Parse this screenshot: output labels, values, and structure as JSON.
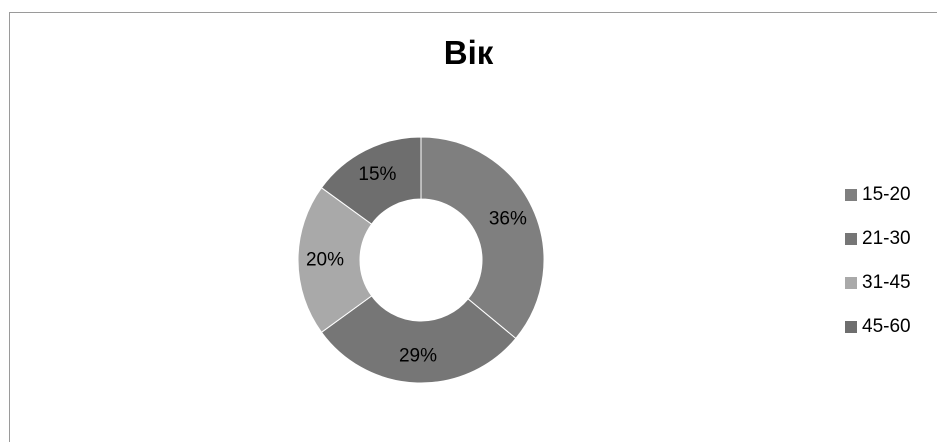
{
  "chart_data": {
    "type": "pie",
    "variant": "doughnut",
    "title": "Вік",
    "categories": [
      "15-20",
      "21-30",
      "31-45",
      "45-60"
    ],
    "values": [
      36,
      29,
      20,
      15
    ],
    "value_labels": [
      "36%",
      "29%",
      "20%",
      "15%"
    ],
    "colors": [
      "#7f7f7f",
      "#767676",
      "#a9a9a9",
      "#6e6e6e"
    ],
    "legend": {
      "position": "right",
      "items": [
        {
          "label": "15-20",
          "color": "#7f7f7f"
        },
        {
          "label": "21-30",
          "color": "#767676"
        },
        {
          "label": "31-45",
          "color": "#a9a9a9"
        },
        {
          "label": "45-60",
          "color": "#6e6e6e"
        }
      ]
    }
  }
}
